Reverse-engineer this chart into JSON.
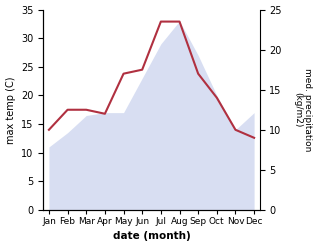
{
  "months": [
    "Jan",
    "Feb",
    "Mar",
    "Apr",
    "May",
    "Jun",
    "Jul",
    "Aug",
    "Sep",
    "Oct",
    "Nov",
    "Dec"
  ],
  "temp": [
    11,
    13.5,
    16.5,
    17,
    17,
    23,
    29,
    33,
    27,
    20,
    14,
    17
  ],
  "precip": [
    10,
    12.5,
    12.5,
    12,
    17,
    17.5,
    23.5,
    23.5,
    17,
    14,
    10,
    9
  ],
  "temp_ylim": [
    0,
    35
  ],
  "precip_ylim": [
    0,
    25
  ],
  "temp_fill_color": "#b8c4e8",
  "precip_line_color": "#b03040",
  "xlabel": "date (month)",
  "ylabel_left": "max temp (C)",
  "ylabel_right": "med. precipitation\n(kg/m2)",
  "bg_color": "#ffffff",
  "area_alpha": 0.55,
  "figsize": [
    3.18,
    2.47
  ],
  "dpi": 100
}
